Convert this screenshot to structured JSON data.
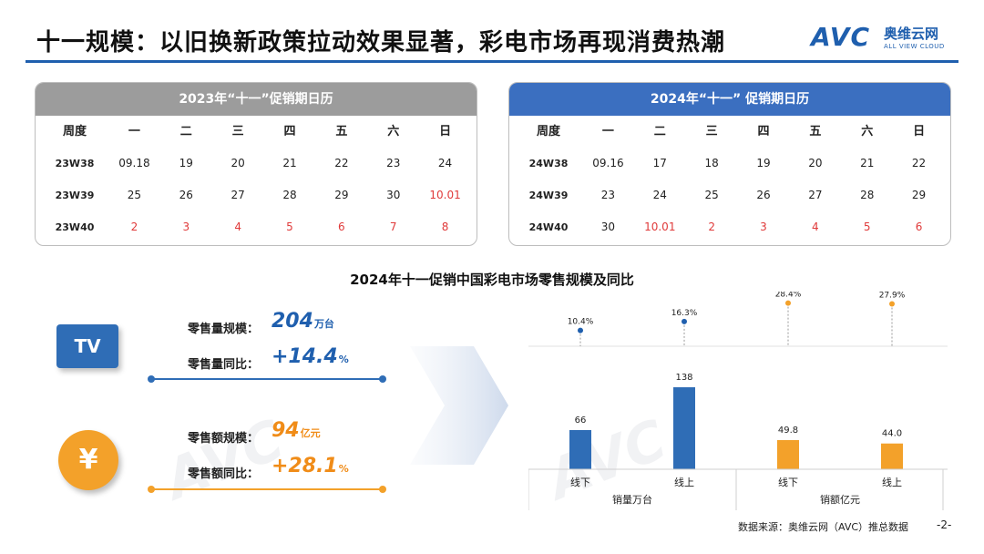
{
  "header": {
    "title": "十一规模：以旧换新政策拉动效果显著，彩电市场再现消费热潮",
    "logo_mark": "AVC",
    "logo_cn": "奥维云网",
    "logo_en": "ALL VIEW CLOUD"
  },
  "calendar_2023": {
    "title": "2023年“十一”促销期日历",
    "columns": [
      "周度",
      "一",
      "二",
      "三",
      "四",
      "五",
      "六",
      "日"
    ],
    "rows": [
      {
        "week": "23W38",
        "days": [
          "09.18",
          "19",
          "20",
          "21",
          "22",
          "23",
          "24"
        ],
        "holiday": [
          false,
          false,
          false,
          false,
          false,
          false,
          false
        ]
      },
      {
        "week": "23W39",
        "days": [
          "25",
          "26",
          "27",
          "28",
          "29",
          "30",
          "10.01"
        ],
        "holiday": [
          false,
          false,
          false,
          false,
          false,
          false,
          true
        ]
      },
      {
        "week": "23W40",
        "days": [
          "2",
          "3",
          "4",
          "5",
          "6",
          "7",
          "8"
        ],
        "holiday": [
          true,
          true,
          true,
          true,
          true,
          true,
          true
        ]
      }
    ]
  },
  "calendar_2024": {
    "title": "2024年“十一” 促销期日历",
    "columns": [
      "周度",
      "一",
      "二",
      "三",
      "四",
      "五",
      "六",
      "日"
    ],
    "rows": [
      {
        "week": "24W38",
        "days": [
          "09.16",
          "17",
          "18",
          "19",
          "20",
          "21",
          "22"
        ],
        "holiday": [
          false,
          false,
          false,
          false,
          false,
          false,
          false
        ]
      },
      {
        "week": "24W39",
        "days": [
          "23",
          "24",
          "25",
          "26",
          "27",
          "28",
          "29"
        ],
        "holiday": [
          false,
          false,
          false,
          false,
          false,
          false,
          false
        ]
      },
      {
        "week": "24W40",
        "days": [
          "30",
          "10.01",
          "2",
          "3",
          "4",
          "5",
          "6"
        ],
        "holiday": [
          false,
          true,
          true,
          true,
          true,
          true,
          true
        ]
      }
    ]
  },
  "kpis": {
    "tv_icon": "TV",
    "yen_icon": "¥",
    "volume_label": "零售量规模：",
    "volume_value": "204",
    "volume_unit": "万台",
    "volume_yoy_label": "零售量同比：",
    "volume_yoy_value": "+14.4",
    "volume_yoy_unit": "%",
    "revenue_label": "零售额规模：",
    "revenue_value": "94",
    "revenue_unit": "亿元",
    "revenue_yoy_label": "零售额同比：",
    "revenue_yoy_value": "+28.1",
    "revenue_yoy_unit": "%"
  },
  "chart_title": "2024年十一促销中国彩电市场零售规模及同比",
  "chart_data": {
    "type": "bar",
    "title": "2024年十一促销中国彩电市场零售规模及同比",
    "groups": [
      "销量万台",
      "销额亿元"
    ],
    "categories": [
      "线下",
      "线上",
      "线下",
      "线上"
    ],
    "values": [
      66,
      138,
      49.8,
      44.0
    ],
    "value_labels": [
      "66",
      "138",
      "49.8",
      "44.0"
    ],
    "yoy_labels": [
      "10.4%",
      "16.3%",
      "28.4%",
      "27.9%"
    ],
    "yoy_values": [
      10.4,
      16.3,
      28.4,
      27.9
    ],
    "series_colors": [
      "#2f6db6",
      "#2f6db6",
      "#f3a12a",
      "#f3a12a"
    ],
    "yoy_marker_colors": [
      "#1f5fae",
      "#1f5fae",
      "#f3a12a",
      "#f3a12a"
    ],
    "grid": false
  },
  "colors": {
    "brand_blue": "#1f5fae",
    "orange": "#f3a12a",
    "holiday_red": "#e03a3a"
  },
  "footer": {
    "source": "数据来源：奥维云网（AVC）推总数据",
    "page": "-2-"
  }
}
